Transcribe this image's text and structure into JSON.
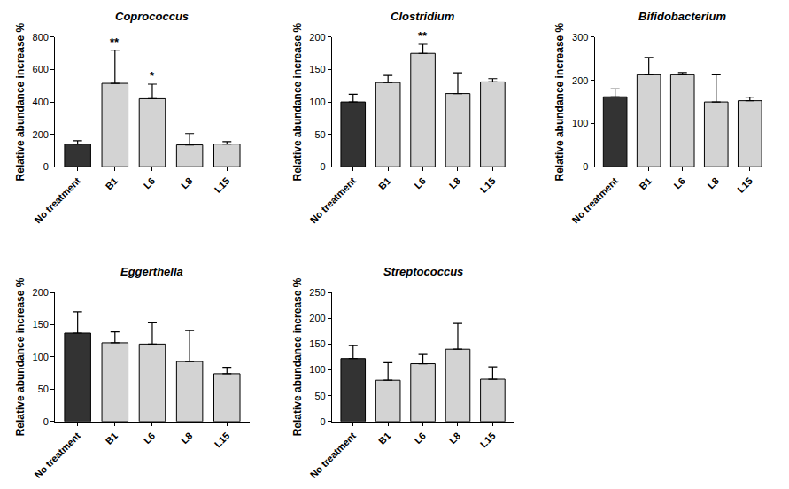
{
  "chart_data": [
    {
      "type": "bar",
      "title": "Coprococcus",
      "y_label": "Relative abundance increase %",
      "categories": [
        "No treatment",
        "B1",
        "L6",
        "L8",
        "L15"
      ],
      "values": [
        140,
        515,
        420,
        135,
        140
      ],
      "errors": [
        20,
        205,
        90,
        70,
        15
      ],
      "colors": [
        "#333333",
        "#d3d3d3",
        "#d3d3d3",
        "#d3d3d3",
        "#d3d3d3"
      ],
      "ylim": [
        0,
        800
      ],
      "yticks": [
        0,
        200,
        400,
        600,
        800
      ],
      "grid": false,
      "annotations": [
        {
          "category": "B1",
          "text": "**"
        },
        {
          "category": "L6",
          "text": "*"
        }
      ]
    },
    {
      "type": "bar",
      "title": "Clostridium",
      "y_label": "Relative abundance increase %",
      "categories": [
        "No treatment",
        "B1",
        "L6",
        "L8",
        "L15"
      ],
      "values": [
        100,
        130,
        175,
        113,
        131
      ],
      "errors": [
        12,
        11,
        14,
        32,
        5
      ],
      "colors": [
        "#333333",
        "#d3d3d3",
        "#d3d3d3",
        "#d3d3d3",
        "#d3d3d3"
      ],
      "ylim": [
        0,
        200
      ],
      "yticks": [
        0,
        50,
        100,
        150,
        200
      ],
      "grid": false,
      "annotations": [
        {
          "category": "L6",
          "text": "**"
        }
      ]
    },
    {
      "type": "bar",
      "title": "Bifidobacterium",
      "y_label": "Relative abundance increase %",
      "categories": [
        "No treatment",
        "B1",
        "L6",
        "L8",
        "L15"
      ],
      "values": [
        162,
        213,
        213,
        150,
        153
      ],
      "errors": [
        18,
        40,
        5,
        63,
        8
      ],
      "colors": [
        "#333333",
        "#d3d3d3",
        "#d3d3d3",
        "#d3d3d3",
        "#d3d3d3"
      ],
      "ylim": [
        0,
        300
      ],
      "yticks": [
        0,
        100,
        200,
        300
      ],
      "grid": false
    },
    {
      "type": "bar",
      "title": "Eggerthella",
      "y_label": "Relative abundance increase %",
      "categories": [
        "No treatment",
        "B1",
        "L6",
        "L8",
        "L15"
      ],
      "values": [
        137,
        122,
        120,
        93,
        74
      ],
      "errors": [
        33,
        17,
        33,
        48,
        10
      ],
      "colors": [
        "#333333",
        "#d3d3d3",
        "#d3d3d3",
        "#d3d3d3",
        "#d3d3d3"
      ],
      "ylim": [
        0,
        200
      ],
      "yticks": [
        0,
        50,
        100,
        150,
        200
      ],
      "grid": false
    },
    {
      "type": "bar",
      "title": "Streptococcus",
      "y_label": "Relative abundance increase %",
      "categories": [
        "No treatment",
        "B1",
        "L6",
        "L8",
        "L15"
      ],
      "values": [
        122,
        80,
        112,
        140,
        82
      ],
      "errors": [
        25,
        34,
        18,
        50,
        24
      ],
      "colors": [
        "#333333",
        "#d3d3d3",
        "#d3d3d3",
        "#d3d3d3",
        "#d3d3d3"
      ],
      "ylim": [
        0,
        250
      ],
      "yticks": [
        0,
        50,
        100,
        150,
        200,
        250
      ],
      "grid": false
    }
  ]
}
